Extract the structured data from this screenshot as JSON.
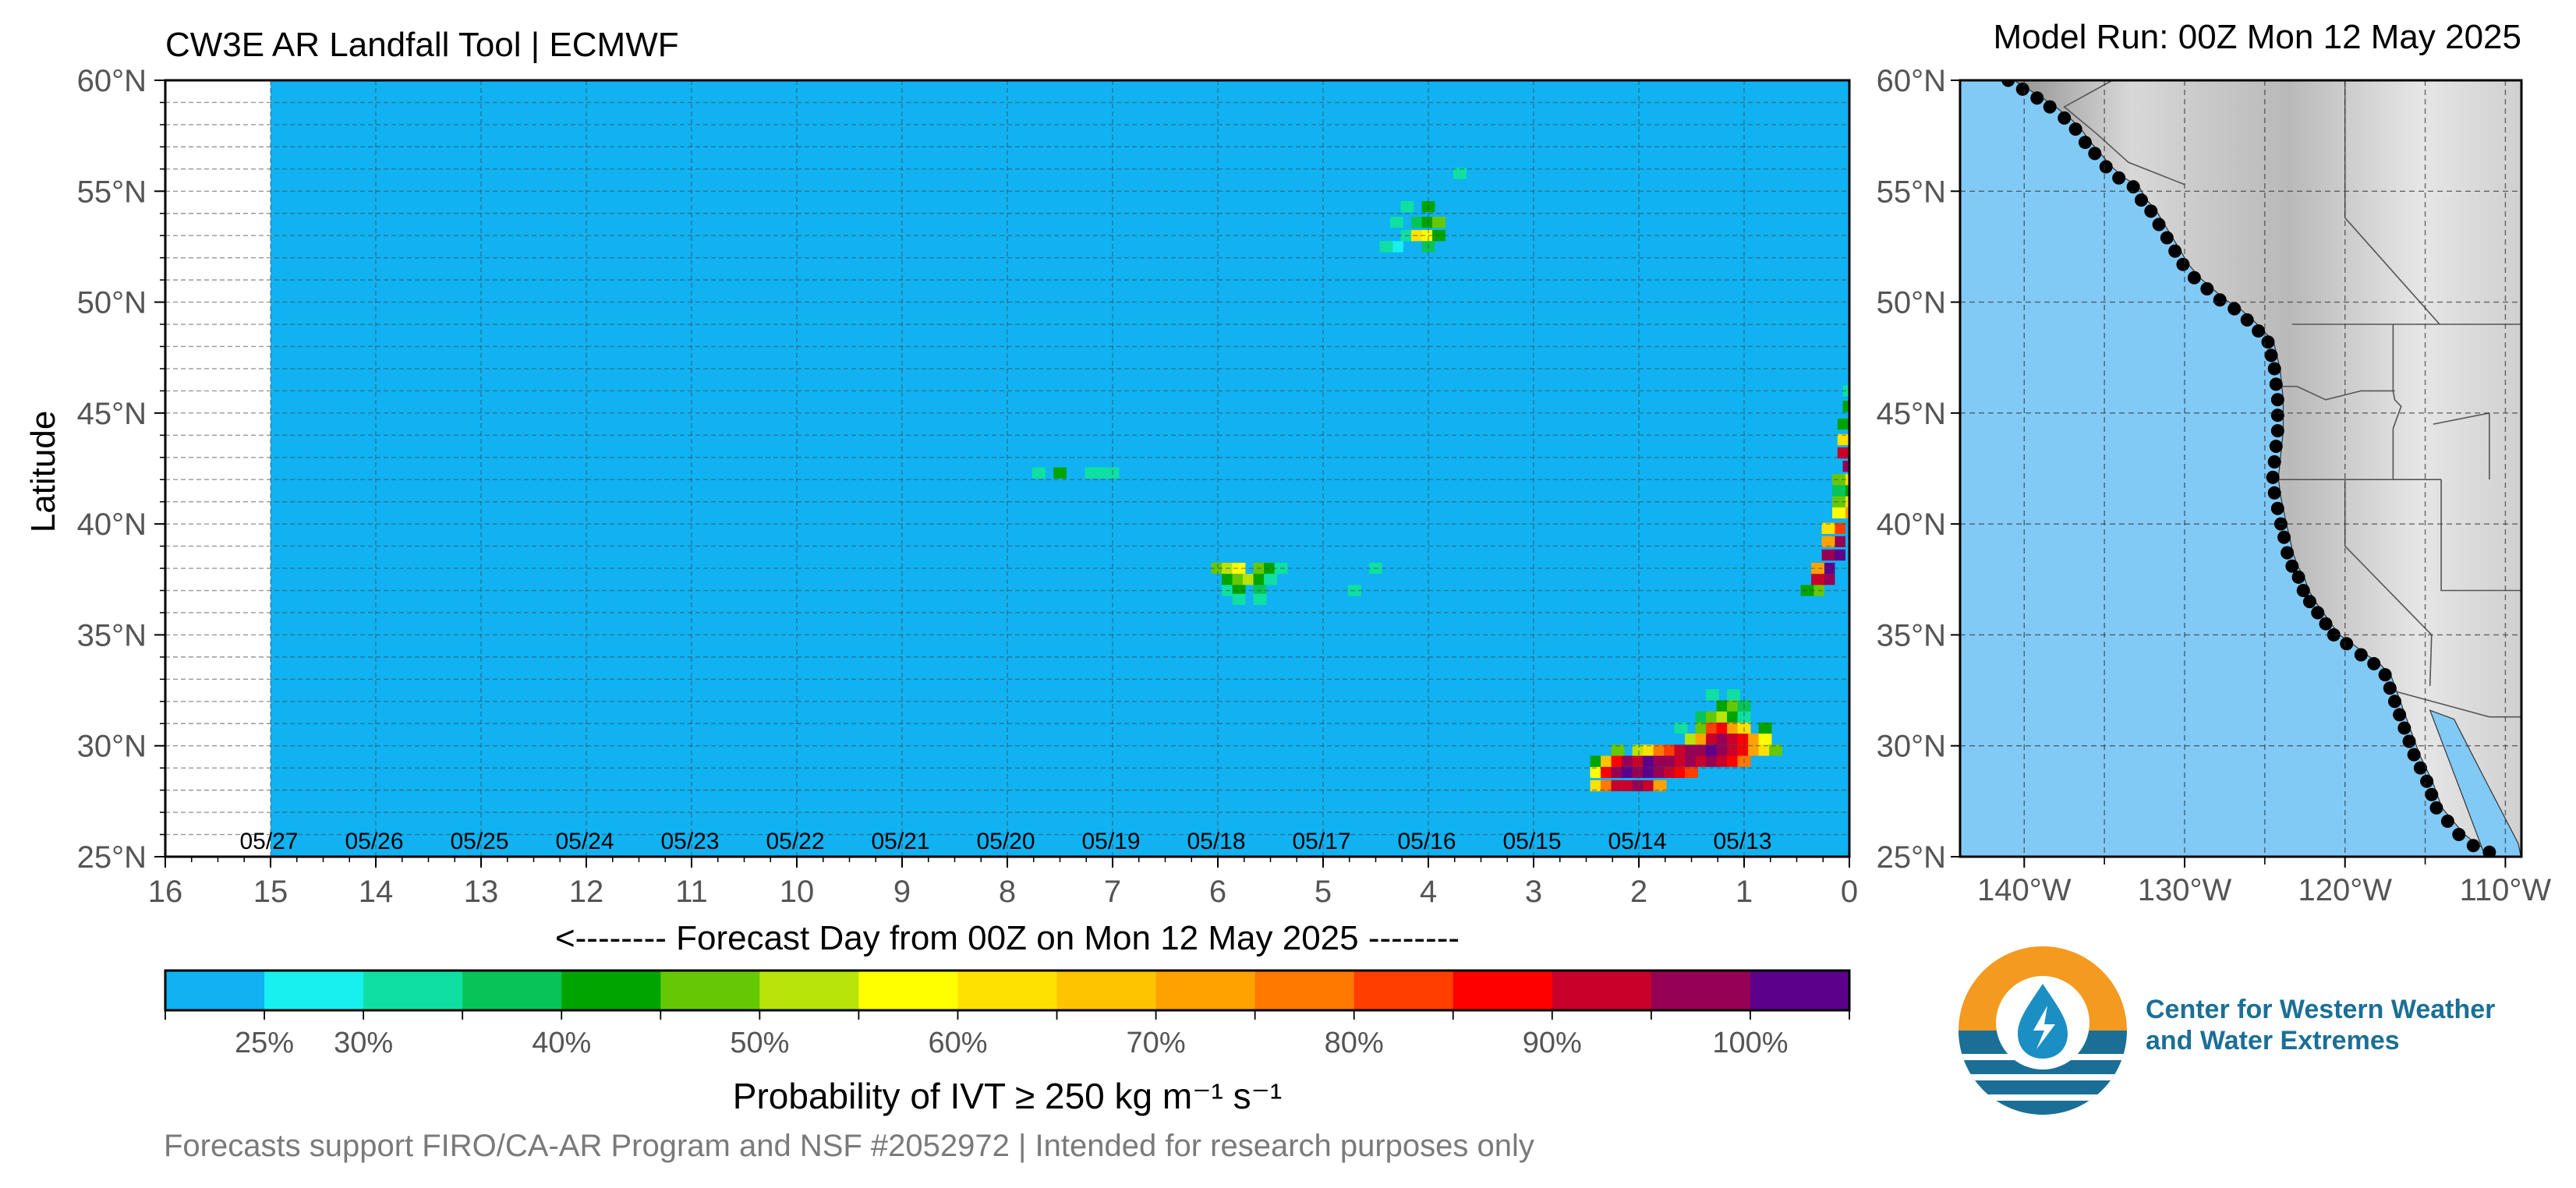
{
  "title_left": "CW3E AR Landfall Tool | ECMWF",
  "title_right": "Model Run: 00Z Mon 12 May 2025",
  "footer": "Forecasts support FIRO/CA-AR Program and NSF #2052972 | Intended for research purposes only",
  "logo": {
    "line1": "Center for Western Weather",
    "line2": "and Water Extremes",
    "colors": {
      "orange": "#f39a1f",
      "teal": "#1b6f96",
      "icon": "drop-bolt-icon"
    }
  },
  "chart_data": [
    {
      "type": "heatmap",
      "xlabel": "<-------- Forecast Day from 00Z on Mon 12 May 2025 --------",
      "ylabel": "Latitude",
      "xlim": [
        16,
        0
      ],
      "ylim": [
        25,
        60
      ],
      "x_ticks": [
        "16",
        "15",
        "14",
        "13",
        "12",
        "11",
        "10",
        "9",
        "8",
        "7",
        "6",
        "5",
        "4",
        "3",
        "2",
        "1",
        "0"
      ],
      "y_ticks": [
        "25°N",
        "30°N",
        "35°N",
        "40°N",
        "45°N",
        "50°N",
        "55°N",
        "60°N"
      ],
      "date_labels": [
        {
          "day": 15,
          "label": "05/27"
        },
        {
          "day": 14,
          "label": "05/26"
        },
        {
          "day": 13,
          "label": "05/25"
        },
        {
          "day": 12,
          "label": "05/24"
        },
        {
          "day": 11,
          "label": "05/23"
        },
        {
          "day": 10,
          "label": "05/22"
        },
        {
          "day": 9,
          "label": "05/21"
        },
        {
          "day": 8,
          "label": "05/20"
        },
        {
          "day": 7,
          "label": "05/19"
        },
        {
          "day": 6,
          "label": "05/18"
        },
        {
          "day": 5,
          "label": "05/17"
        },
        {
          "day": 4,
          "label": "05/16"
        },
        {
          "day": 3,
          "label": "05/15"
        },
        {
          "day": 2,
          "label": "05/14"
        },
        {
          "day": 1,
          "label": "05/13"
        }
      ],
      "forecast_extent_days": 15,
      "background_color": "#10b2f2",
      "colorbar": {
        "label": "Probability of IVT  ≥  250 kg m⁻¹ s⁻¹",
        "colors": [
          "#10b2f2",
          "#17f0ee",
          "#0fe0a1",
          "#07c456",
          "#00a400",
          "#66c805",
          "#b8e40a",
          "#ffff00",
          "#ffe100",
          "#ffc400",
          "#ffa200",
          "#ff7800",
          "#ff3e00",
          "#fe0000",
          "#c8002a",
          "#960055",
          "#5c008c"
        ],
        "tick_labels": [
          {
            "value": 25,
            "label": "25%"
          },
          {
            "value": 30,
            "label": "30%"
          },
          {
            "value": 40,
            "label": "40%"
          },
          {
            "value": 50,
            "label": "50%"
          },
          {
            "value": 60,
            "label": "60%"
          },
          {
            "value": 70,
            "label": "70%"
          },
          {
            "value": 80,
            "label": "80%"
          },
          {
            "value": 90,
            "label": "90%"
          },
          {
            "value": 100,
            "label": "100%"
          }
        ],
        "range": [
          20,
          105
        ]
      },
      "cell_size": {
        "day": 0.125,
        "lat": 0.5
      },
      "cells": [
        [
          4.2,
          53.0,
          30
        ],
        [
          4.1,
          53.0,
          60
        ],
        [
          4.0,
          53.0,
          55
        ],
        [
          3.9,
          53.0,
          40
        ],
        [
          4.3,
          52.5,
          25
        ],
        [
          4.0,
          52.5,
          35
        ],
        [
          4.4,
          52.5,
          30
        ],
        [
          4.2,
          54.3,
          30
        ],
        [
          4.0,
          54.3,
          40
        ],
        [
          4.1,
          53.6,
          35
        ],
        [
          4.0,
          53.6,
          40
        ],
        [
          3.9,
          53.6,
          45
        ],
        [
          4.3,
          53.6,
          30
        ],
        [
          3.7,
          55.8,
          30
        ],
        [
          7.7,
          42.3,
          30
        ],
        [
          7.5,
          42.3,
          40
        ],
        [
          7.2,
          42.3,
          30
        ],
        [
          7.1,
          42.3,
          30
        ],
        [
          7.0,
          42.3,
          30
        ],
        [
          6.0,
          38.0,
          45
        ],
        [
          5.9,
          38.0,
          50
        ],
        [
          5.8,
          38.0,
          55
        ],
        [
          5.6,
          38.0,
          45
        ],
        [
          5.5,
          38.0,
          40
        ],
        [
          5.4,
          38.0,
          30
        ],
        [
          5.9,
          37.5,
          40
        ],
        [
          5.8,
          37.5,
          45
        ],
        [
          5.7,
          37.5,
          50
        ],
        [
          5.6,
          37.5,
          40
        ],
        [
          5.5,
          37.5,
          30
        ],
        [
          5.9,
          37.0,
          30
        ],
        [
          5.8,
          37.0,
          40
        ],
        [
          5.6,
          37.0,
          35
        ],
        [
          5.8,
          36.6,
          30
        ],
        [
          5.6,
          36.6,
          30
        ],
        [
          4.7,
          37.0,
          30
        ],
        [
          4.5,
          38.0,
          30
        ],
        [
          0.3,
          37.0,
          45
        ],
        [
          0.4,
          37.0,
          40
        ],
        [
          0.2,
          37.5,
          95
        ],
        [
          0.3,
          37.5,
          90
        ],
        [
          0.2,
          38.0,
          100
        ],
        [
          0.3,
          38.0,
          70
        ],
        [
          0.1,
          38.6,
          100
        ],
        [
          0.2,
          38.6,
          95
        ],
        [
          0.1,
          39.2,
          95
        ],
        [
          0.2,
          39.2,
          70
        ],
        [
          0.1,
          39.8,
          80
        ],
        [
          0.2,
          39.8,
          60
        ],
        [
          0.0,
          40.5,
          70
        ],
        [
          0.1,
          40.5,
          55
        ],
        [
          0.0,
          41.0,
          60
        ],
        [
          0.1,
          41.0,
          45
        ],
        [
          0.0,
          41.5,
          40
        ],
        [
          0.1,
          41.5,
          35
        ],
        [
          0.0,
          42.0,
          60
        ],
        [
          0.1,
          42.0,
          45
        ],
        [
          0.0,
          42.6,
          95
        ],
        [
          -0.05,
          42.6,
          100
        ],
        [
          0.0,
          43.2,
          100
        ],
        [
          0.05,
          43.2,
          90
        ],
        [
          0.0,
          43.8,
          90
        ],
        [
          0.05,
          43.8,
          60
        ],
        [
          0.0,
          44.5,
          55
        ],
        [
          0.05,
          44.5,
          40
        ],
        [
          0.0,
          45.3,
          40
        ],
        [
          0.0,
          46.0,
          30
        ],
        [
          2.4,
          28.2,
          60
        ],
        [
          2.3,
          28.2,
          75
        ],
        [
          2.2,
          28.2,
          90
        ],
        [
          2.1,
          28.2,
          90
        ],
        [
          2.0,
          28.2,
          95
        ],
        [
          1.9,
          28.2,
          90
        ],
        [
          1.8,
          28.2,
          70
        ],
        [
          2.4,
          28.8,
          55
        ],
        [
          2.3,
          28.8,
          85
        ],
        [
          2.2,
          28.8,
          95
        ],
        [
          2.1,
          28.8,
          100
        ],
        [
          2.0,
          28.8,
          95
        ],
        [
          1.9,
          28.8,
          100
        ],
        [
          1.8,
          28.8,
          95
        ],
        [
          1.7,
          28.8,
          90
        ],
        [
          1.6,
          28.8,
          85
        ],
        [
          1.5,
          28.8,
          80
        ],
        [
          2.4,
          29.3,
          40
        ],
        [
          2.3,
          29.3,
          65
        ],
        [
          2.2,
          29.3,
          85
        ],
        [
          2.1,
          29.3,
          95
        ],
        [
          2.0,
          29.3,
          90
        ],
        [
          1.9,
          29.3,
          100
        ],
        [
          1.8,
          29.3,
          95
        ],
        [
          1.7,
          29.3,
          95
        ],
        [
          1.6,
          29.3,
          90
        ],
        [
          1.5,
          29.3,
          95
        ],
        [
          1.4,
          29.3,
          90
        ],
        [
          1.3,
          29.3,
          95
        ],
        [
          1.2,
          29.3,
          90
        ],
        [
          1.1,
          29.3,
          85
        ],
        [
          1.0,
          29.3,
          75
        ],
        [
          2.2,
          29.8,
          45
        ],
        [
          2.0,
          29.8,
          50
        ],
        [
          1.9,
          29.8,
          60
        ],
        [
          1.8,
          29.8,
          75
        ],
        [
          1.7,
          29.8,
          80
        ],
        [
          1.6,
          29.8,
          90
        ],
        [
          1.5,
          29.8,
          95
        ],
        [
          1.4,
          29.8,
          95
        ],
        [
          1.3,
          29.8,
          100
        ],
        [
          1.2,
          29.8,
          95
        ],
        [
          1.1,
          29.8,
          90
        ],
        [
          1.0,
          29.8,
          85
        ],
        [
          0.9,
          29.8,
          70
        ],
        [
          0.8,
          29.8,
          60
        ],
        [
          0.7,
          29.8,
          45
        ],
        [
          1.5,
          30.3,
          50
        ],
        [
          1.4,
          30.3,
          70
        ],
        [
          1.3,
          30.3,
          90
        ],
        [
          1.2,
          30.3,
          95
        ],
        [
          1.1,
          30.3,
          90
        ],
        [
          1.0,
          30.3,
          85
        ],
        [
          0.9,
          30.3,
          70
        ],
        [
          0.8,
          30.3,
          55
        ],
        [
          1.6,
          30.8,
          30
        ],
        [
          1.4,
          30.8,
          45
        ],
        [
          1.3,
          30.8,
          80
        ],
        [
          1.2,
          30.8,
          85
        ],
        [
          1.1,
          30.8,
          70
        ],
        [
          1.0,
          30.8,
          60
        ],
        [
          0.8,
          30.8,
          40
        ],
        [
          1.4,
          31.3,
          35
        ],
        [
          1.3,
          31.3,
          45
        ],
        [
          1.2,
          31.3,
          50
        ],
        [
          1.1,
          31.3,
          40
        ],
        [
          1.0,
          31.3,
          30
        ],
        [
          1.2,
          31.8,
          40
        ],
        [
          1.1,
          31.8,
          45
        ],
        [
          1.0,
          31.8,
          35
        ],
        [
          1.1,
          32.3,
          30
        ],
        [
          1.3,
          32.3,
          30
        ]
      ]
    },
    {
      "type": "map",
      "xlim": [
        -144,
        -109
      ],
      "ylim": [
        25,
        60
      ],
      "x_ticks": [
        "140°W",
        "130°W",
        "120°W",
        "110°W"
      ],
      "y_ticks": [
        "25°N",
        "30°N",
        "35°N",
        "40°N",
        "45°N",
        "50°N",
        "55°N",
        "60°N"
      ],
      "ocean_color": "#82caf6",
      "points": [
        [
          -141.0,
          60.0
        ],
        [
          -140.1,
          59.6
        ],
        [
          -139.2,
          59.2
        ],
        [
          -138.4,
          58.8
        ],
        [
          -137.5,
          58.3
        ],
        [
          -136.8,
          57.8
        ],
        [
          -136.2,
          57.2
        ],
        [
          -135.6,
          56.7
        ],
        [
          -134.9,
          56.1
        ],
        [
          -134.1,
          55.6
        ],
        [
          -133.2,
          55.2
        ],
        [
          -132.7,
          54.6
        ],
        [
          -132.1,
          54.1
        ],
        [
          -131.6,
          53.5
        ],
        [
          -131.1,
          52.9
        ],
        [
          -130.6,
          52.3
        ],
        [
          -130.1,
          51.7
        ],
        [
          -129.4,
          51.1
        ],
        [
          -128.6,
          50.6
        ],
        [
          -127.8,
          50.1
        ],
        [
          -126.9,
          49.7
        ],
        [
          -126.1,
          49.2
        ],
        [
          -125.4,
          48.7
        ],
        [
          -124.8,
          48.2
        ],
        [
          -124.6,
          47.6
        ],
        [
          -124.4,
          47.0
        ],
        [
          -124.3,
          46.3
        ],
        [
          -124.2,
          45.6
        ],
        [
          -124.2,
          44.9
        ],
        [
          -124.2,
          44.2
        ],
        [
          -124.3,
          43.5
        ],
        [
          -124.4,
          42.8
        ],
        [
          -124.5,
          42.1
        ],
        [
          -124.4,
          41.4
        ],
        [
          -124.2,
          40.7
        ],
        [
          -124.0,
          40.0
        ],
        [
          -123.8,
          39.4
        ],
        [
          -123.6,
          38.7
        ],
        [
          -123.3,
          38.1
        ],
        [
          -122.9,
          37.6
        ],
        [
          -122.6,
          37.0
        ],
        [
          -122.2,
          36.5
        ],
        [
          -121.7,
          36.0
        ],
        [
          -121.2,
          35.5
        ],
        [
          -120.7,
          35.0
        ],
        [
          -119.9,
          34.6
        ],
        [
          -119.0,
          34.1
        ],
        [
          -118.2,
          33.7
        ],
        [
          -117.5,
          33.2
        ],
        [
          -117.2,
          32.6
        ],
        [
          -116.9,
          32.0
        ],
        [
          -116.6,
          31.4
        ],
        [
          -116.3,
          30.8
        ],
        [
          -116.0,
          30.2
        ],
        [
          -115.7,
          29.6
        ],
        [
          -115.3,
          29.0
        ],
        [
          -114.9,
          28.4
        ],
        [
          -114.6,
          27.8
        ],
        [
          -114.3,
          27.2
        ],
        [
          -113.6,
          26.6
        ],
        [
          -112.9,
          26.0
        ],
        [
          -112.0,
          25.5
        ],
        [
          -111.0,
          25.2
        ]
      ]
    }
  ]
}
